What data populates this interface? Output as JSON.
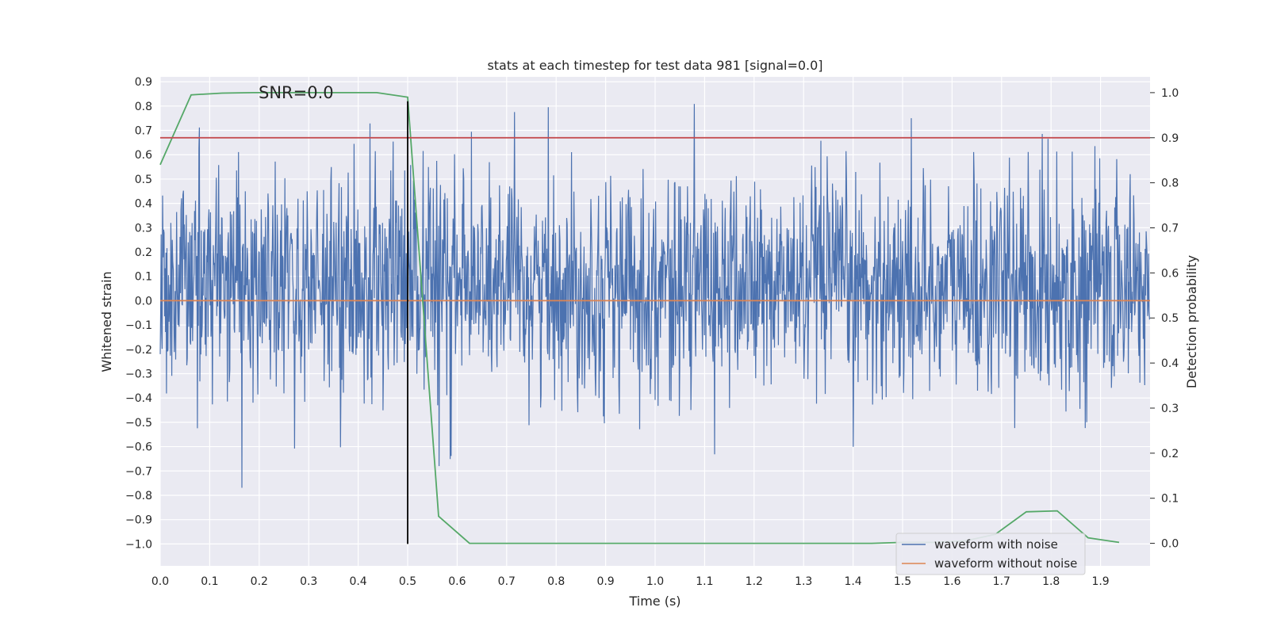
{
  "chart_data": {
    "type": "line",
    "title": "stats at each timestep for test data 981 [signal=0.0]",
    "xlabel": "Time (s)",
    "ylabel": "Whitened strain",
    "y2label": "Detection probability",
    "annotation": "SNR=0.0",
    "xlim": [
      0.0,
      2.0
    ],
    "ylim": [
      -1.09,
      0.92
    ],
    "y2lim": [
      -0.05,
      1.035
    ],
    "x_ticks": [
      "0.0",
      "0.1",
      "0.2",
      "0.3",
      "0.4",
      "0.5",
      "0.6",
      "0.7",
      "0.8",
      "0.9",
      "1.0",
      "1.1",
      "1.2",
      "1.3",
      "1.4",
      "1.5",
      "1.6",
      "1.7",
      "1.8",
      "1.9"
    ],
    "y_ticks": [
      "0.9",
      "0.8",
      "0.7",
      "0.6",
      "0.5",
      "0.4",
      "0.3",
      "0.2",
      "0.1",
      "0.0",
      "−0.1",
      "−0.2",
      "−0.3",
      "−0.4",
      "−0.5",
      "−0.6",
      "−0.7",
      "−0.8",
      "−0.9",
      "−1.0"
    ],
    "y2_ticks": [
      "1.0",
      "0.9",
      "0.8",
      "0.7",
      "0.6",
      "0.5",
      "0.4",
      "0.3",
      "0.2",
      "0.1",
      "0.0"
    ],
    "grid": true,
    "legend_position": "lower right",
    "vline_x": 0.5,
    "vline_yrange": [
      -1.0,
      0.82
    ],
    "threshold_probability": 0.9,
    "noise_sample_rate_hz": 1024,
    "noise_std": 0.22,
    "series": [
      {
        "name": "waveform with noise",
        "color": "#4c72b0",
        "axis": "left",
        "note": "random-looking whitened strain noise, roughly zero-mean"
      },
      {
        "name": "waveform without noise",
        "color": "#dd8452",
        "axis": "left",
        "x": [
          0.0,
          2.0
        ],
        "y": [
          0.0,
          0.0
        ]
      },
      {
        "name": "detection_probability",
        "color": "#55a868",
        "axis": "right",
        "x": [
          0.0,
          0.0625,
          0.125,
          0.1875,
          0.25,
          0.3125,
          0.375,
          0.4375,
          0.5,
          0.5625,
          0.625,
          0.6875,
          0.75,
          0.8125,
          0.875,
          0.9375,
          1.0,
          1.0625,
          1.125,
          1.1875,
          1.25,
          1.3125,
          1.375,
          1.4375,
          1.5,
          1.5625,
          1.625,
          1.6875,
          1.75,
          1.8125,
          1.875,
          1.9375
        ],
        "y": [
          0.84,
          0.995,
          0.999,
          1.0,
          1.0,
          1.0,
          1.0,
          1.0,
          0.99,
          0.06,
          0.0,
          0.0,
          0.0,
          0.0,
          0.0,
          0.0,
          0.0,
          0.0,
          0.0,
          0.0,
          0.0,
          0.0,
          0.0,
          0.0,
          0.002,
          0.002,
          0.005,
          0.02,
          0.07,
          0.072,
          0.012,
          0.002
        ]
      },
      {
        "name": "threshold",
        "color": "#c44e52",
        "axis": "right",
        "x": [
          0.0,
          2.0
        ],
        "y": [
          0.9,
          0.9
        ]
      }
    ]
  }
}
